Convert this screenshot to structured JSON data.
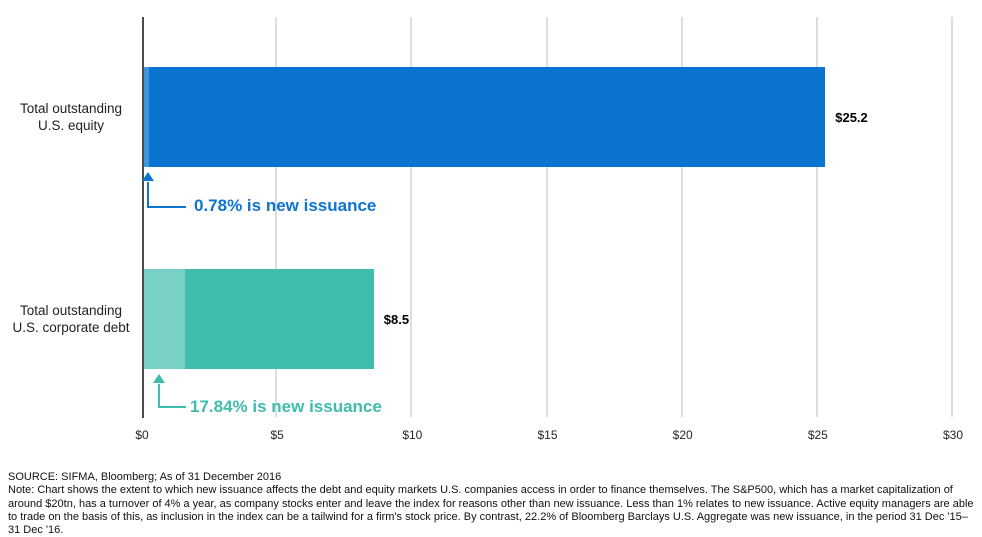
{
  "chart_data": {
    "type": "bar",
    "orientation": "horizontal",
    "title": "",
    "xlabel": "",
    "ylabel": "",
    "xlim": [
      0,
      30
    ],
    "grid": true,
    "x_ticks": [
      {
        "value": 0,
        "label": "$0"
      },
      {
        "value": 5,
        "label": "$5"
      },
      {
        "value": 10,
        "label": "$10"
      },
      {
        "value": 15,
        "label": "$15"
      },
      {
        "value": 20,
        "label": "$20"
      },
      {
        "value": 25,
        "label": "$25"
      },
      {
        "value": 30,
        "label": "$30"
      }
    ],
    "bars": [
      {
        "category_lines": [
          "Total outstanding",
          "U.S. equity"
        ],
        "value": 25.2,
        "value_label": "$25.2",
        "new_issuance_pct": 0.78,
        "annotation": "0.78% is new issuance",
        "color": "#0b73d0",
        "light_color": "#3f97dd",
        "annotation_color": "#0f74cf"
      },
      {
        "category_lines": [
          "Total outstanding",
          "U.S. corporate debt"
        ],
        "value": 8.5,
        "value_label": "$8.5",
        "new_issuance_pct": 17.84,
        "annotation": "17.84% is new issuance",
        "color": "#3fbcac",
        "light_color": "#79d0c4",
        "annotation_color": "#3fbcac"
      }
    ],
    "gridline_color": "#dedede",
    "axis_color": "#4a4a4a"
  },
  "footer": {
    "source": "SOURCE: SIFMA, Bloomberg; As of 31 December 2016",
    "note": "Note: Chart shows the extent to which new issuance affects the debt and equity markets U.S. companies access in order to finance themselves. The S&P500, which has a market capitalization of around $20tn, has a turnover of 4% a year, as company stocks enter and leave the index for reasons other than new issuance. Less than 1% relates to new issuance. Active equity managers are able to trade on the basis of this, as inclusion in the index can be a tailwind for a firm's stock price. By contrast, 22.2% of Bloomberg Barclays U.S. Aggregate was new issuance, in the period 31 Dec '15– 31 Dec '16."
  }
}
